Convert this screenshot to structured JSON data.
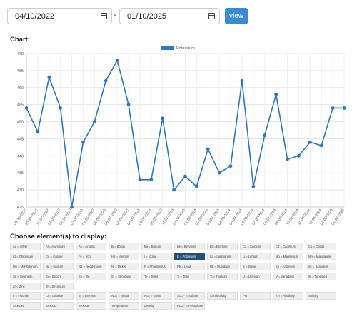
{
  "filters": {
    "from_date": "04/10/2022",
    "to_date": "01/10/2025",
    "separator": "-",
    "view_label": "view"
  },
  "chart_heading": "Chart:",
  "choose_heading": "Choose element(s) to display:",
  "chart_data": {
    "type": "line",
    "title": "",
    "xlabel": "",
    "ylabel": "",
    "ylim": [
      425,
      470
    ],
    "yticks": [
      425,
      430,
      435,
      440,
      445,
      450,
      455,
      460,
      465,
      470
    ],
    "grid": true,
    "legend_position": "top-center",
    "color": "#2a78c4",
    "x": [
      "09-30-2022",
      "10-31-2022",
      "12-07-2022",
      "01-05-2023",
      "02-14-2023",
      "03-07-2023",
      "04-05-2023",
      "05-03-2023",
      "06-02-2023",
      "07-04-2023",
      "08-03-2023",
      "09-07-2023",
      "10-05-2023",
      "11-02-2023",
      "12-05-2023",
      "01-03-2024",
      "02-06-2024",
      "03-05-2024",
      "04-05-2024",
      "05-03-2024",
      "06-05-2024",
      "07-02-2024",
      "08-01-2024",
      "09-03-2024",
      "10-02-2024",
      "11-04-2024",
      "12-04-2024",
      "01-03-2025",
      "01-08-2025"
    ],
    "series": [
      {
        "name": "Potassium",
        "values": [
          454,
          447,
          463,
          454,
          425,
          444,
          450,
          462,
          468,
          455,
          433,
          433,
          451,
          430,
          434,
          431,
          442,
          435,
          437,
          462,
          431,
          446,
          458,
          439,
          440,
          444,
          443,
          454,
          454
        ]
      }
    ]
  },
  "elements": [
    "Ag = Silver",
    "Al = Aluminum",
    "As = Arsenic",
    "B = Boron",
    "Ba = Barium",
    "Be = Beryllium",
    "Br = Bromine",
    "Ca = Calcium",
    "Cd = Cadmium",
    "Co = Cobalt",
    "Cl = Chromium",
    "Cu = Copper",
    "Fe = Iron",
    "Hg = Mercury",
    "I = Iodine",
    "K = Potassium",
    "La = Lanthanum",
    "Li = Lithium",
    "Mg = Magnesium",
    "Mn = Manganese",
    "Mo = Molybdenum",
    "Na = Sodium",
    "Nd = Neodymium",
    "Ni = Nickel",
    "P = Phosphorus",
    "Pb = Lead",
    "Rb = Rubidium",
    "S = Sulfur",
    "Sb = Antimony",
    "Sc = Scandium",
    "Se = Selenium",
    "Si = Silicon",
    "Sn = Tin",
    "Sr = Strontium",
    "Te = Tellur",
    "Ti = Titan",
    "Tl = Thallium",
    "U = Uranium",
    "V = Vanadium",
    "W = Tungsten",
    "Zr = Zinc",
    "Zr = Zirconium"
  ],
  "selected_element": "K = Potassium",
  "parameters": [
    "F = Fluoride",
    "Cl = Chloride",
    "Br = Bromide",
    "NO₃ = Nitrate",
    "NO₂ = Nitrite",
    "SO₄²⁻ = Sulfate",
    "Conductivity",
    "PH",
    "KH = Alkalinity",
    "Salinity",
    "SAK254",
    "SAK433",
    "SAK436",
    "Temperature",
    "Density",
    "PO₄³⁻ = Phosphate"
  ]
}
